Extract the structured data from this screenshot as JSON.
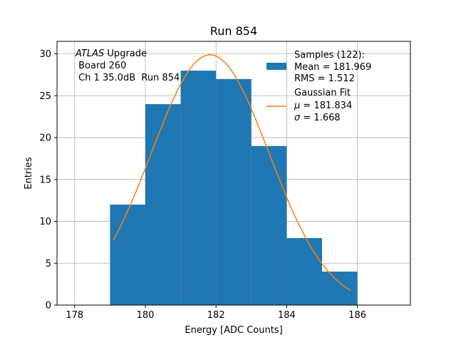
{
  "chart_data": {
    "type": "bar",
    "title": "Run 854",
    "xlabel": "Energy [ADC Counts]",
    "ylabel": "Entries",
    "xlim": [
      177.5,
      187.5
    ],
    "ylim": [
      0,
      31.5
    ],
    "grid": true,
    "x_ticks": [
      178,
      180,
      182,
      184,
      186
    ],
    "y_ticks": [
      0,
      5,
      10,
      15,
      20,
      25,
      30
    ],
    "histogram": {
      "name": "Samples (122):",
      "color": "#1f77b4",
      "bin_edges": [
        179,
        180,
        181,
        182,
        183,
        184,
        185,
        186
      ],
      "counts": [
        12,
        24,
        28,
        27,
        19,
        8,
        4
      ]
    },
    "fit": {
      "name": "Gaussian Fit",
      "color": "#ff7f0e",
      "mu": 181.834,
      "sigma": 1.668,
      "amplitude": 29.9,
      "x_range": [
        179.1,
        185.8
      ]
    },
    "legend": {
      "placement": "upper-right",
      "samples_title": "Samples (122):",
      "samples_mean": "Mean = 181.969",
      "samples_rms": "RMS = 1.512",
      "fit_title": "Gaussian Fit",
      "fit_mu": "181.834",
      "fit_sigma": "1.668"
    },
    "annotation": {
      "placement": "upper-left",
      "atlas": "ATLAS",
      "upgrade": "Upgrade",
      "board": "Board 260",
      "channel": "Ch 1 35.0dB  Run 854"
    }
  }
}
